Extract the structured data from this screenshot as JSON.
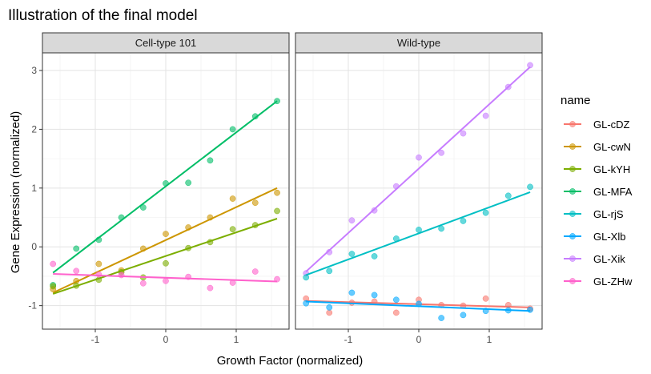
{
  "chart_data": {
    "type": "scatter",
    "title": "Illustration of the final model",
    "xlabel": "Growth Factor (normalized)",
    "ylabel": "Gene Expression (normalized)",
    "xlim": [
      -1.75,
      1.75
    ],
    "ylim": [
      -1.4,
      3.3
    ],
    "x_ticks": [
      -1,
      0,
      1
    ],
    "y_ticks": [
      -1,
      0,
      1,
      2,
      3
    ],
    "grid": true,
    "legend": {
      "title": "name",
      "position": "right"
    },
    "series_styles": {
      "GL-cDZ": "#F8766D",
      "GL-cwN": "#CD9600",
      "GL-kYH": "#7CAE00",
      "GL-MFA": "#00BE67",
      "GL-rjS": "#00BFC4",
      "GL-Xlb": "#00A9FF",
      "GL-Xik": "#C77CFF",
      "GL-ZHw": "#FF61CC"
    },
    "panels": [
      {
        "label": "Cell-type 101",
        "series": [
          {
            "name": "GL-MFA",
            "x": [
              -1.6,
              -1.27,
              -0.95,
              -0.63,
              -0.32,
              0.0,
              0.32,
              0.63,
              0.95,
              1.27,
              1.58
            ],
            "y": [
              -0.65,
              -0.03,
              0.12,
              0.5,
              0.67,
              1.08,
              1.09,
              1.47,
              2.0,
              2.22,
              2.48
            ],
            "fit": [
              [
                -1.6,
                -0.44
              ],
              [
                1.58,
                2.48
              ]
            ]
          },
          {
            "name": "GL-cwN",
            "x": [
              -1.6,
              -1.27,
              -0.95,
              -0.63,
              -0.32,
              0.0,
              0.32,
              0.63,
              0.95,
              1.27,
              1.58
            ],
            "y": [
              -0.72,
              -0.58,
              -0.29,
              -0.4,
              -0.03,
              0.22,
              0.33,
              0.5,
              0.82,
              0.75,
              0.92
            ],
            "fit": [
              [
                -1.6,
                -0.78
              ],
              [
                1.58,
                1.0
              ]
            ]
          },
          {
            "name": "GL-kYH",
            "x": [
              -1.6,
              -1.27,
              -0.95,
              -0.63,
              -0.32,
              0.0,
              0.32,
              0.63,
              0.95,
              1.27,
              1.58
            ],
            "y": [
              -0.67,
              -0.66,
              -0.56,
              -0.43,
              -0.52,
              -0.28,
              -0.02,
              0.08,
              0.3,
              0.37,
              0.61
            ],
            "fit": [
              [
                -1.6,
                -0.8
              ],
              [
                1.58,
                0.48
              ]
            ]
          },
          {
            "name": "GL-ZHw",
            "x": [
              -1.6,
              -1.27,
              -0.95,
              -0.63,
              -0.32,
              0.0,
              0.32,
              0.63,
              0.95,
              1.27,
              1.58
            ],
            "y": [
              -0.29,
              -0.41,
              -0.47,
              -0.48,
              -0.62,
              -0.58,
              -0.51,
              -0.7,
              -0.61,
              -0.42,
              -0.55
            ],
            "fit": [
              [
                -1.6,
                -0.46
              ],
              [
                1.58,
                -0.59
              ]
            ]
          }
        ]
      },
      {
        "label": "Wild-type",
        "series": [
          {
            "name": "GL-Xik",
            "x": [
              -1.6,
              -1.27,
              -0.95,
              -0.63,
              -0.32,
              0.0,
              0.32,
              0.63,
              0.95,
              1.27,
              1.58
            ],
            "y": [
              -0.45,
              -0.09,
              0.45,
              0.62,
              1.03,
              1.52,
              1.6,
              1.93,
              2.23,
              2.72,
              3.09
            ],
            "fit": [
              [
                -1.6,
                -0.42
              ],
              [
                1.58,
                3.06
              ]
            ]
          },
          {
            "name": "GL-rjS",
            "x": [
              -1.6,
              -1.27,
              -0.95,
              -0.63,
              -0.32,
              0.0,
              0.32,
              0.63,
              0.95,
              1.27,
              1.58
            ],
            "y": [
              -0.52,
              -0.41,
              -0.12,
              -0.16,
              0.14,
              0.29,
              0.31,
              0.44,
              0.58,
              0.87,
              1.02
            ],
            "fit": [
              [
                -1.6,
                -0.48
              ],
              [
                1.58,
                0.93
              ]
            ]
          },
          {
            "name": "GL-cDZ",
            "x": [
              -1.6,
              -1.27,
              -0.95,
              -0.63,
              -0.32,
              0.0,
              0.32,
              0.63,
              0.95,
              1.27,
              1.58
            ],
            "y": [
              -0.88,
              -1.12,
              -0.95,
              -0.93,
              -1.12,
              -0.9,
              -0.99,
              -1.0,
              -0.88,
              -0.99,
              -1.05
            ],
            "fit": [
              [
                -1.6,
                -0.92
              ],
              [
                1.58,
                -1.03
              ]
            ]
          },
          {
            "name": "GL-Xlb",
            "x": [
              -1.6,
              -1.27,
              -0.95,
              -0.63,
              -0.32,
              0.0,
              0.32,
              0.63,
              0.95,
              1.27,
              1.58
            ],
            "y": [
              -0.96,
              -1.03,
              -0.78,
              -0.82,
              -0.9,
              -0.97,
              -1.21,
              -1.16,
              -1.09,
              -1.08,
              -1.07
            ],
            "fit": [
              [
                -1.6,
                -0.93
              ],
              [
                1.58,
                -1.09
              ]
            ]
          }
        ]
      }
    ]
  }
}
